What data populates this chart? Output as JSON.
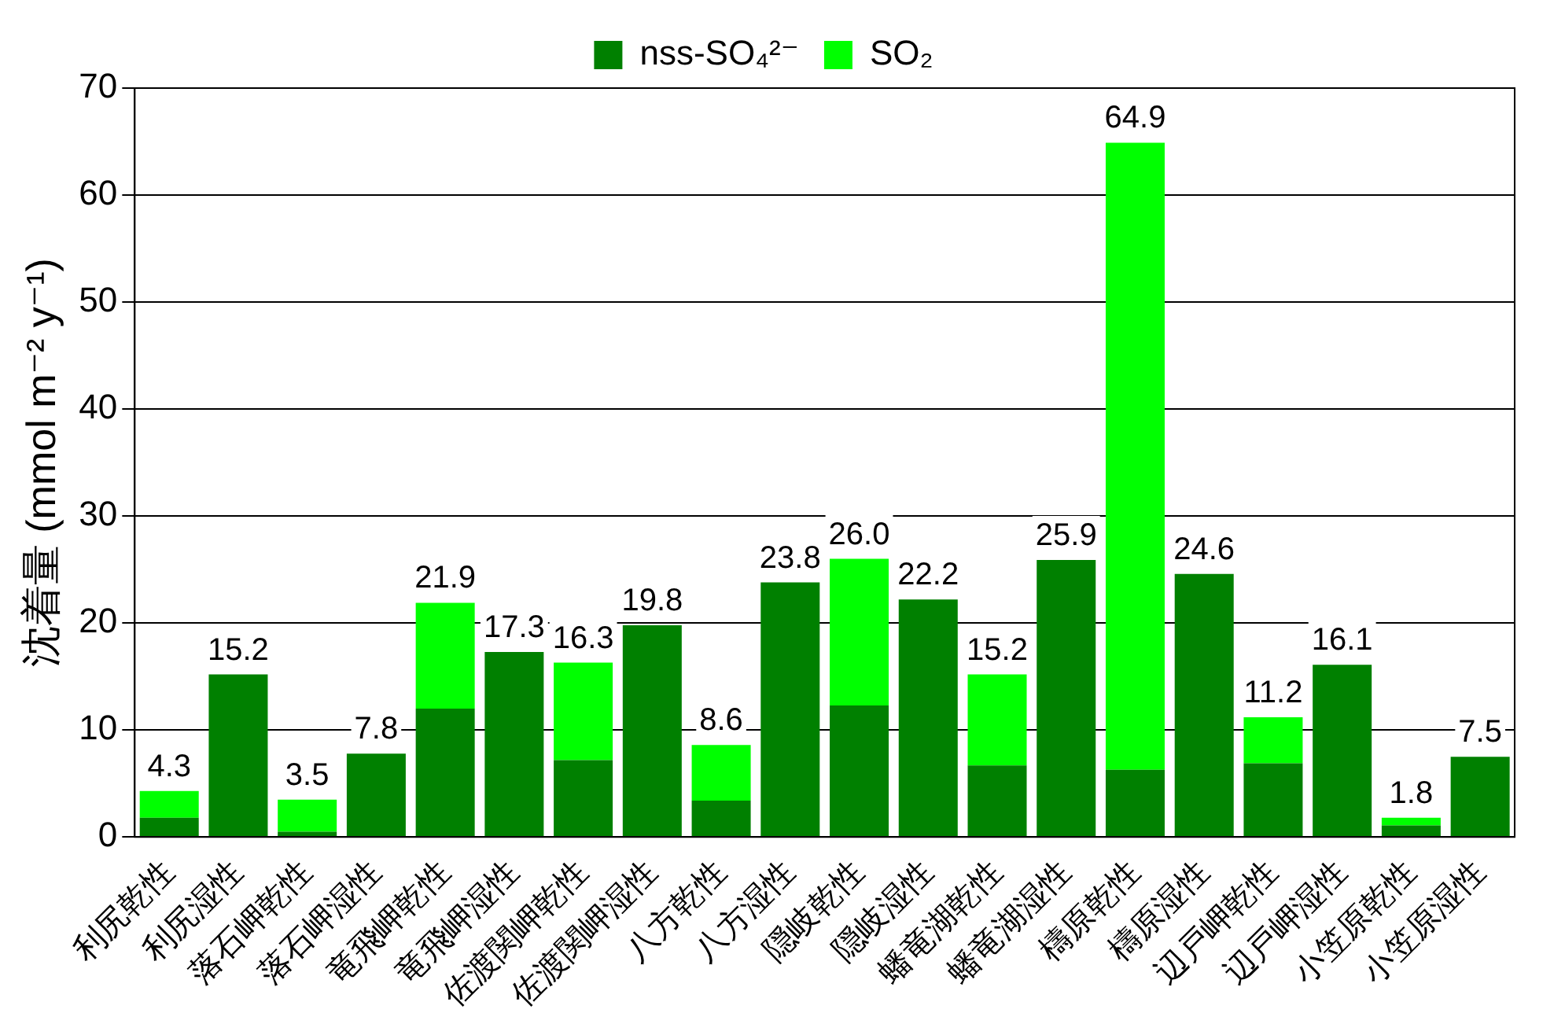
{
  "chart_data": {
    "type": "bar",
    "stacked": true,
    "ylabel": "沈着量 (mmol m⁻² y⁻¹)",
    "categories": [
      "利尻乾性",
      "利尻湿性",
      "落石岬乾性",
      "落石岬湿性",
      "竜飛岬乾性",
      "竜飛岬湿性",
      "佐渡関岬乾性",
      "佐渡関岬湿性",
      "八方乾性",
      "八方湿性",
      "隠岐乾性",
      "隠岐湿性",
      "蟠竜湖乾性",
      "蟠竜湖湿性",
      "檮原乾性",
      "檮原湿性",
      "辺戸岬乾性",
      "辺戸岬湿性",
      "小笠原乾性",
      "小笠原湿性"
    ],
    "series": [
      {
        "name": "nss-SO₄²⁻",
        "color": "#008000",
        "values": [
          1.8,
          15.2,
          0.5,
          7.8,
          12.0,
          17.3,
          7.2,
          19.8,
          3.4,
          23.8,
          12.3,
          22.2,
          6.7,
          25.9,
          6.3,
          24.6,
          6.9,
          16.1,
          1.1,
          7.5
        ]
      },
      {
        "name": "SO₂",
        "color": "#00ff00",
        "values": [
          2.5,
          null,
          3.0,
          null,
          9.9,
          null,
          9.1,
          null,
          5.2,
          null,
          13.7,
          null,
          8.5,
          null,
          58.6,
          null,
          4.3,
          null,
          0.7,
          null
        ]
      }
    ],
    "totals": [
      "4.3",
      "15.2",
      "3.5",
      "7.8",
      "21.9",
      "17.3",
      "16.3",
      "19.8",
      "8.6",
      "23.8",
      "26.0",
      "22.2",
      "15.2",
      "25.9",
      "64.9",
      "24.6",
      "11.2",
      "16.1",
      "1.8",
      "7.5"
    ],
    "ylim": [
      0,
      70
    ],
    "yticks": [
      0,
      10,
      20,
      30,
      40,
      50,
      60,
      70
    ],
    "grid": "y",
    "legend": "top"
  }
}
